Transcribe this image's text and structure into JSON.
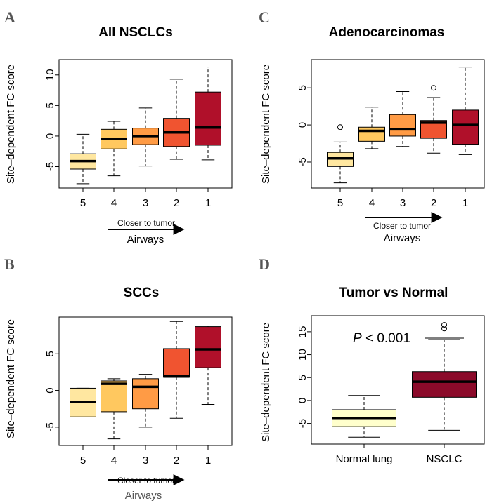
{
  "colors": {
    "5": "#ffe7a0",
    "4": "#ffc85f",
    "3": "#ff9b45",
    "2": "#f05430",
    "1": "#b0102a",
    "normal": "#ffffcc",
    "nsclc": "#8b0a2a"
  },
  "chart_data": [
    {
      "id": "A",
      "letter": "A",
      "type": "box",
      "title": "All NSCLCs",
      "ylabel": "Site–dependent FC score",
      "xlabel": "Airways",
      "closer_label": "Closer to tumor",
      "ylim": [
        -8.5,
        12.5
      ],
      "yticks": [
        -5,
        0,
        5,
        10
      ],
      "categories": [
        "5",
        "4",
        "3",
        "2",
        "1"
      ],
      "boxes": [
        {
          "label": "5",
          "color": "#ffe7a0",
          "low": -7.8,
          "q1": -5.4,
          "median": -4.1,
          "q3": -2.9,
          "high": 0.3,
          "outliers": []
        },
        {
          "label": "4",
          "color": "#ffc85f",
          "low": -6.5,
          "q1": -2.1,
          "median": -0.5,
          "q3": 1.1,
          "high": 2.4,
          "outliers": []
        },
        {
          "label": "3",
          "color": "#ff9b45",
          "low": -4.9,
          "q1": -1.4,
          "median": 0.0,
          "q3": 1.3,
          "high": 4.6,
          "outliers": []
        },
        {
          "label": "2",
          "color": "#f05430",
          "low": -3.8,
          "q1": -1.7,
          "median": 0.6,
          "q3": 2.9,
          "high": 9.3,
          "outliers": []
        },
        {
          "label": "1",
          "color": "#b0102a",
          "low": -3.9,
          "q1": -1.5,
          "median": 1.4,
          "q3": 7.2,
          "high": 11.3,
          "outliers": []
        }
      ]
    },
    {
      "id": "C",
      "letter": "C",
      "type": "box",
      "title": "Adenocarcinomas",
      "ylabel": "Site–dependent FC score",
      "xlabel": "Airways",
      "closer_label": "Closer to tumor",
      "ylim": [
        -8.5,
        8.8
      ],
      "yticks": [
        -5,
        0,
        5
      ],
      "categories": [
        "5",
        "4",
        "3",
        "2",
        "1"
      ],
      "boxes": [
        {
          "label": "5",
          "color": "#ffe7a0",
          "low": -7.8,
          "q1": -5.6,
          "median": -4.5,
          "q3": -3.7,
          "high": -2.3,
          "outliers": [
            -0.3
          ]
        },
        {
          "label": "4",
          "color": "#ffc85f",
          "low": -3.2,
          "q1": -2.2,
          "median": -0.8,
          "q3": -0.3,
          "high": 2.4,
          "outliers": []
        },
        {
          "label": "3",
          "color": "#ff9b45",
          "low": -2.9,
          "q1": -1.5,
          "median": -0.6,
          "q3": 1.4,
          "high": 4.5,
          "outliers": []
        },
        {
          "label": "2",
          "color": "#f05430",
          "low": -3.8,
          "q1": -1.8,
          "median": 0.3,
          "q3": 0.6,
          "high": 3.7,
          "outliers": [
            5.0
          ]
        },
        {
          "label": "1",
          "color": "#b0102a",
          "low": -4.0,
          "q1": -2.6,
          "median": 0.0,
          "q3": 2.0,
          "high": 7.8,
          "outliers": []
        }
      ]
    },
    {
      "id": "B",
      "letter": "B",
      "type": "box",
      "title": "SCCs",
      "ylabel": "Site–dependent FC score",
      "xlabel": "Airways",
      "closer_label": "Closer to tumor",
      "ylim": [
        -7.5,
        10.0
      ],
      "yticks": [
        -5,
        0,
        5
      ],
      "categories": [
        "5",
        "4",
        "3",
        "2",
        "1"
      ],
      "boxes": [
        {
          "label": "5",
          "color": "#ffe7a0",
          "low": -3.6,
          "q1": -3.6,
          "median": -1.6,
          "q3": 0.3,
          "high": 0.3,
          "outliers": []
        },
        {
          "label": "4",
          "color": "#ffc85f",
          "low": -6.6,
          "q1": -2.9,
          "median": 0.9,
          "q3": 1.3,
          "high": 1.6,
          "outliers": []
        },
        {
          "label": "3",
          "color": "#ff9b45",
          "low": -5.0,
          "q1": -2.5,
          "median": 0.5,
          "q3": 1.6,
          "high": 2.2,
          "outliers": []
        },
        {
          "label": "2",
          "color": "#f05430",
          "low": -3.8,
          "q1": 1.8,
          "median": 1.9,
          "q3": 5.7,
          "high": 9.4,
          "outliers": []
        },
        {
          "label": "1",
          "color": "#b0102a",
          "low": -1.9,
          "q1": 3.1,
          "median": 5.6,
          "q3": 8.7,
          "high": 8.8,
          "outliers": []
        }
      ]
    },
    {
      "id": "D",
      "letter": "D",
      "type": "box",
      "title": "Tumor vs Normal",
      "ylabel": "Site–dependent FC score",
      "xlabel": "",
      "closer_label": "",
      "ylim": [
        -9.5,
        18.5
      ],
      "yticks": [
        -5,
        0,
        5,
        10,
        15
      ],
      "categories": [
        "Normal lung",
        "NSCLC"
      ],
      "annotation": {
        "p_symbol": "P",
        "text": " < 0.001"
      },
      "boxes": [
        {
          "label": "Normal lung",
          "color": "#ffffcc",
          "low": -8.0,
          "q1": -5.7,
          "median": -3.8,
          "q3": -2.0,
          "high": 1.1,
          "outliers": []
        },
        {
          "label": "NSCLC",
          "color": "#8b0a2a",
          "low": -6.5,
          "q1": 0.7,
          "median": 4.1,
          "q3": 6.3,
          "high": 13.3,
          "outliers": [
            15.7,
            16.5
          ]
        }
      ]
    }
  ]
}
